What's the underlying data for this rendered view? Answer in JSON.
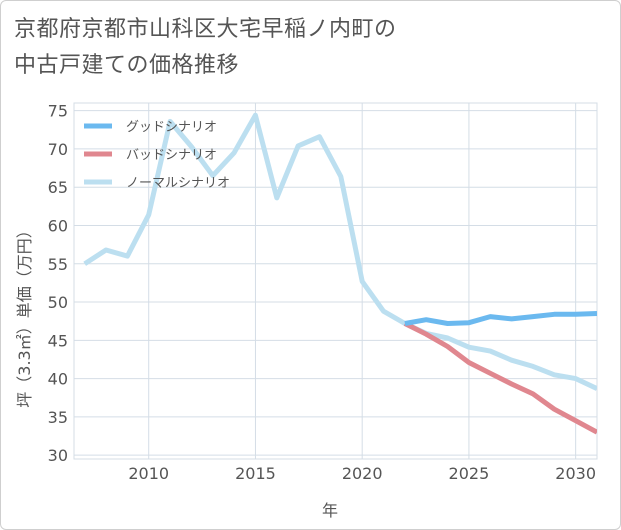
{
  "title_line1": "京都府京都市山科区大宅早稲ノ内町の",
  "title_line2": "中古戸建ての価格推移",
  "chart_data": {
    "type": "line",
    "title": "京都府京都市山科区大宅早稲ノ内町の中古戸建ての価格推移",
    "xlabel": "年",
    "ylabel": "坪（3.3㎡）単価（万円）",
    "xlim": [
      2006.5,
      2031
    ],
    "ylim": [
      29.5,
      76
    ],
    "xticks": [
      2010,
      2015,
      2020,
      2025,
      2030
    ],
    "yticks": [
      30,
      35,
      40,
      45,
      50,
      55,
      60,
      65,
      70,
      75
    ],
    "grid": true,
    "legend_position": "top-left",
    "series": [
      {
        "name": "グッドシナリオ",
        "color": "#6bb9ef",
        "x": [
          2022,
          2023,
          2024,
          2025,
          2026,
          2027,
          2028,
          2029,
          2030,
          2031
        ],
        "y": [
          47.2,
          47.7,
          47.2,
          47.3,
          48.1,
          47.8,
          48.1,
          48.4,
          48.4,
          48.5
        ]
      },
      {
        "name": "バッドシナリオ",
        "color": "#e0878f",
        "x": [
          2022,
          2023,
          2024,
          2025,
          2026,
          2027,
          2028,
          2029,
          2030,
          2031
        ],
        "y": [
          47.2,
          45.8,
          44.2,
          42.1,
          40.7,
          39.3,
          38.0,
          36.0,
          34.5,
          33.0
        ]
      },
      {
        "name": "ノーマルシナリオ",
        "color": "#bcdff0",
        "x": [
          2007,
          2008,
          2009,
          2010,
          2011,
          2012,
          2013,
          2014,
          2015,
          2016,
          2017,
          2018,
          2019,
          2020,
          2021,
          2022,
          2023,
          2024,
          2025,
          2026,
          2027,
          2028,
          2029,
          2030,
          2031
        ],
        "y": [
          55.0,
          56.8,
          56.0,
          61.4,
          73.6,
          70.3,
          66.5,
          69.5,
          74.4,
          63.6,
          70.4,
          71.6,
          66.4,
          52.7,
          48.8,
          47.2,
          45.9,
          45.3,
          44.1,
          43.6,
          42.4,
          41.6,
          40.5,
          40.0,
          38.7
        ]
      }
    ]
  }
}
